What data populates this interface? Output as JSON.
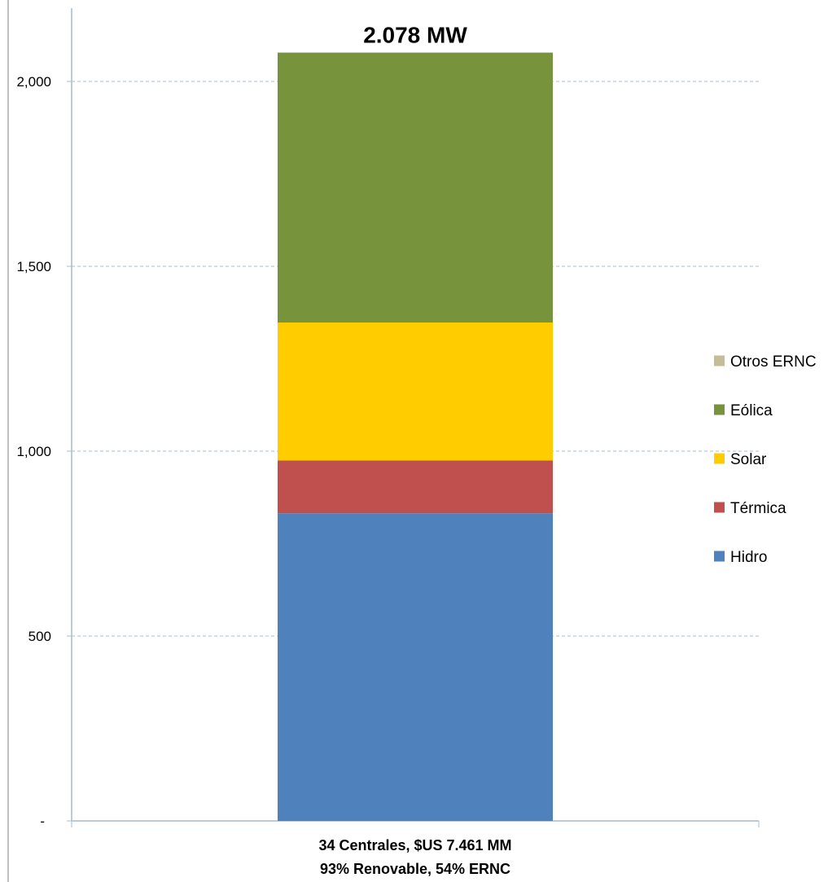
{
  "chart_data": {
    "type": "bar",
    "stacked": true,
    "categories": [
      "34 Centrales, $US 7.461 MM\n93% Renovable, 54% ERNC"
    ],
    "category_lines": [
      "34 Centrales, $US 7.461 MM",
      "93% Renovable, 54% ERNC"
    ],
    "series": [
      {
        "name": "Hidro",
        "values": [
          832
        ],
        "color": "#4F81BD"
      },
      {
        "name": "Térmica",
        "values": [
          143
        ],
        "color": "#C0504D"
      },
      {
        "name": "Solar",
        "values": [
          373
        ],
        "color": "#FFCC00"
      },
      {
        "name": "Eólica",
        "values": [
          730
        ],
        "color": "#77933C"
      },
      {
        "name": "Otros ERNC",
        "values": [
          0
        ],
        "color": "#C4BD97"
      }
    ],
    "legend_order": [
      "Otros ERNC",
      "Eólica",
      "Solar",
      "Térmica",
      "Hidro"
    ],
    "data_label": "2.078 MW",
    "y_ticks": [
      {
        "value": 0,
        "label": "-"
      },
      {
        "value": 500,
        "label": "500"
      },
      {
        "value": 1000,
        "label": "1,000"
      },
      {
        "value": 1500,
        "label": "1,500"
      },
      {
        "value": 2000,
        "label": "2,000"
      }
    ],
    "ylim": [
      0,
      2100
    ],
    "grid": true,
    "legend_position": "right",
    "title": "",
    "xlabel": "",
    "ylabel": ""
  }
}
